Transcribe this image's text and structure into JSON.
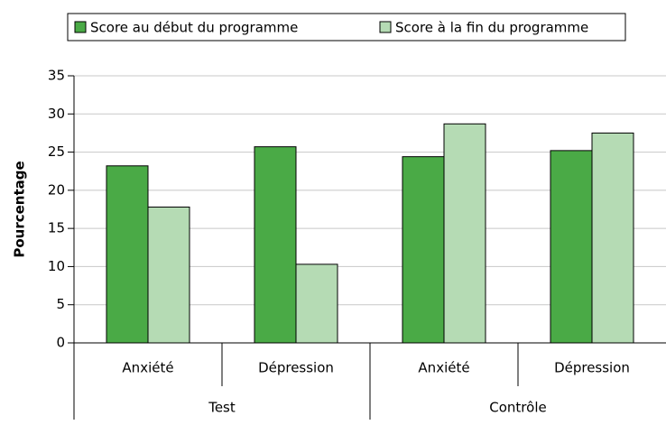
{
  "chart_data": {
    "type": "bar",
    "y_label": "Pourcentage",
    "categories": [
      "Anxiété",
      "Dépression",
      "Anxiété",
      "Dépression"
    ],
    "groups": [
      "Test",
      "Contrôle"
    ],
    "series": [
      {
        "name": "Score au début du programme",
        "color": "#4aaa46",
        "values": [
          23.2,
          25.7,
          24.4,
          25.2
        ]
      },
      {
        "name": "Score à la fin du programme",
        "color": "#b5dbb4",
        "values": [
          17.8,
          10.3,
          28.7,
          27.5
        ]
      }
    ],
    "ylim": [
      0,
      35
    ],
    "yticks": [
      0,
      5,
      10,
      15,
      20,
      25,
      30,
      35
    ],
    "grid": true
  }
}
